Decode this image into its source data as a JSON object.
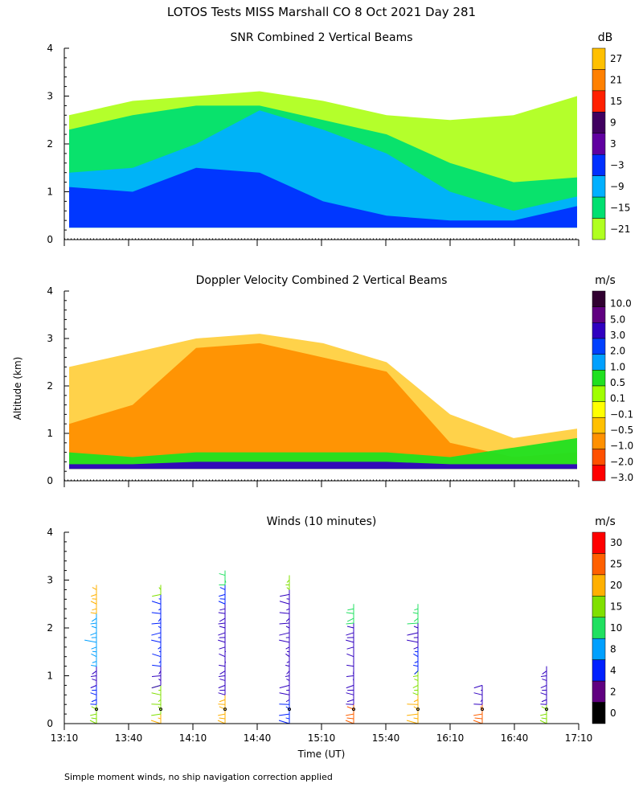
{
  "title": "LOTOS Tests MISS Marshall CO   8 Oct 2021 Day 281",
  "footer_note": "Simple moment winds, no ship navigation correction applied",
  "shared_ylabel": "Altitude (km)",
  "chart_data": [
    {
      "id": "snr",
      "type": "heatmap",
      "title": "SNR Combined 2 Vertical Beams",
      "ylabel": "Altitude (km)",
      "ylim": [
        0,
        4
      ],
      "yticks": [
        "0",
        "1",
        "2",
        "3",
        "4"
      ],
      "colorbar_unit": "dB",
      "colorbar": {
        "labels": [
          "27",
          "21",
          "15",
          "9",
          "3",
          "−3",
          "−9",
          "−15",
          "−21"
        ],
        "colors": [
          "#ffc000",
          "#ff8000",
          "#ff2000",
          "#400060",
          "#6000a0",
          "#0030ff",
          "#00b0ff",
          "#00e070",
          "#b0ff20"
        ]
      },
      "layers": [
        {
          "name": "low_snr",
          "color": "#b0ff20",
          "ranges": [
            [
              0,
              2.6
            ],
            [
              0,
              2.9
            ],
            [
              0,
              3.0
            ],
            [
              0,
              3.1
            ],
            [
              0,
              2.9
            ],
            [
              0,
              2.6
            ],
            [
              0,
              2.5
            ],
            [
              0,
              2.6
            ],
            [
              0,
              3.0
            ]
          ]
        },
        {
          "name": "mid_snr",
          "color": "#00e070",
          "ranges": [
            [
              0,
              2.3
            ],
            [
              0,
              2.6
            ],
            [
              0,
              2.8
            ],
            [
              0,
              2.8
            ],
            [
              0,
              2.5
            ],
            [
              0,
              2.2
            ],
            [
              0,
              1.6
            ],
            [
              0,
              1.2
            ],
            [
              0,
              1.3
            ]
          ]
        },
        {
          "name": "high_snr",
          "color": "#00b0ff",
          "ranges": [
            [
              0,
              1.4
            ],
            [
              0,
              1.5
            ],
            [
              0,
              2.0
            ],
            [
              0,
              2.7
            ],
            [
              0,
              2.3
            ],
            [
              0,
              1.8
            ],
            [
              0,
              1.0
            ],
            [
              0,
              0.6
            ],
            [
              0,
              0.9
            ]
          ]
        },
        {
          "name": "max_snr",
          "color": "#0030ff",
          "ranges": [
            [
              0,
              1.1
            ],
            [
              0,
              1.0
            ],
            [
              0,
              1.5
            ],
            [
              0,
              1.4
            ],
            [
              0,
              0.8
            ],
            [
              0,
              0.5
            ],
            [
              0,
              0.4
            ],
            [
              0,
              0.4
            ],
            [
              0,
              0.7
            ]
          ]
        }
      ]
    },
    {
      "id": "doppler",
      "type": "heatmap",
      "title": "Doppler Velocity Combined 2 Vertical Beams",
      "ylabel": "Altitude (km)",
      "ylim": [
        0,
        4
      ],
      "yticks": [
        "0",
        "1",
        "2",
        "3",
        "4"
      ],
      "colorbar_unit": "m/s",
      "colorbar": {
        "labels": [
          "10.0",
          "5.0",
          "3.0",
          "2.0",
          "1.0",
          "0.5",
          "0.1",
          "−0.1",
          "−0.5",
          "−1.0",
          "−2.0",
          "−3.0"
        ],
        "colors": [
          "#300030",
          "#600080",
          "#3000c0",
          "#0040ff",
          "#00a0ff",
          "#20e020",
          "#a0ff00",
          "#ffff00",
          "#ffc000",
          "#ff9000",
          "#ff5000",
          "#ff0000"
        ]
      },
      "layers": [
        {
          "name": "weak_down",
          "color": "#ffd040",
          "ranges": [
            [
              0,
              2.4
            ],
            [
              0,
              2.7
            ],
            [
              0,
              3.0
            ],
            [
              0,
              3.1
            ],
            [
              0,
              2.9
            ],
            [
              0,
              2.5
            ],
            [
              0,
              1.4
            ],
            [
              0,
              0.9
            ],
            [
              0,
              1.1
            ]
          ]
        },
        {
          "name": "mod_down",
          "color": "#ff9000",
          "ranges": [
            [
              0,
              1.2
            ],
            [
              0,
              1.6
            ],
            [
              0,
              2.8
            ],
            [
              0,
              2.9
            ],
            [
              0,
              2.6
            ],
            [
              0,
              2.3
            ],
            [
              0,
              0.8
            ],
            [
              0,
              0.5
            ],
            [
              0,
              0.6
            ]
          ]
        },
        {
          "name": "up_bits",
          "color": "#20e020",
          "ranges": [
            [
              0,
              0.6
            ],
            [
              0,
              0.5
            ],
            [
              0,
              0.6
            ],
            [
              0,
              0.6
            ],
            [
              0,
              0.6
            ],
            [
              0,
              0.6
            ],
            [
              0,
              0.5
            ],
            [
              0,
              0.7
            ],
            [
              0,
              0.9
            ]
          ]
        },
        {
          "name": "surface_noise",
          "color": "#3000c0",
          "ranges": [
            [
              0,
              0.35
            ],
            [
              0,
              0.35
            ],
            [
              0,
              0.4
            ],
            [
              0,
              0.4
            ],
            [
              0,
              0.4
            ],
            [
              0,
              0.4
            ],
            [
              0,
              0.35
            ],
            [
              0,
              0.35
            ],
            [
              0,
              0.35
            ]
          ]
        }
      ]
    },
    {
      "id": "winds",
      "type": "scatter",
      "title": "Winds (10 minutes)",
      "ylabel": "Altitude (km)",
      "xlabel": "Time (UT)",
      "ylim": [
        0,
        4
      ],
      "yticks": [
        "0",
        "1",
        "2",
        "3",
        "4"
      ],
      "xticks": [
        "13:10",
        "13:40",
        "14:10",
        "14:40",
        "15:10",
        "15:40",
        "16:10",
        "16:40",
        "17:10"
      ],
      "colorbar_unit": "m/s",
      "colorbar": {
        "labels": [
          "30",
          "25",
          "20",
          "15",
          "10",
          "8",
          "4",
          "2",
          "0"
        ],
        "colors": [
          "#ff0000",
          "#ff6000",
          "#ffb000",
          "#80e000",
          "#20e060",
          "#00a0ff",
          "#0020ff",
          "#600080",
          "#000000"
        ]
      },
      "profiles": [
        {
          "time": "13:25",
          "top_km": 2.9,
          "segments": [
            {
              "from": 0.0,
              "to": 0.4,
              "color": "#80e000"
            },
            {
              "from": 0.4,
              "to": 0.8,
              "color": "#0020ff"
            },
            {
              "from": 0.8,
              "to": 1.2,
              "color": "#3000c0"
            },
            {
              "from": 1.2,
              "to": 2.3,
              "color": "#00a0ff"
            },
            {
              "from": 2.3,
              "to": 2.9,
              "color": "#ffb000"
            }
          ]
        },
        {
          "time": "13:55",
          "top_km": 2.9,
          "segments": [
            {
              "from": 0.0,
              "to": 0.2,
              "color": "#ffb000"
            },
            {
              "from": 0.2,
              "to": 0.8,
              "color": "#80e000"
            },
            {
              "from": 0.8,
              "to": 1.2,
              "color": "#3000c0"
            },
            {
              "from": 1.2,
              "to": 2.7,
              "color": "#0020ff"
            },
            {
              "from": 2.7,
              "to": 2.9,
              "color": "#80e000"
            }
          ]
        },
        {
          "time": "14:25",
          "top_km": 3.2,
          "segments": [
            {
              "from": 0.0,
              "to": 0.6,
              "color": "#ffb000"
            },
            {
              "from": 0.6,
              "to": 2.5,
              "color": "#3000c0"
            },
            {
              "from": 2.5,
              "to": 2.9,
              "color": "#0020ff"
            },
            {
              "from": 2.9,
              "to": 3.2,
              "color": "#20e060"
            }
          ]
        },
        {
          "time": "14:55",
          "top_km": 3.1,
          "segments": [
            {
              "from": 0.0,
              "to": 0.5,
              "color": "#0020ff"
            },
            {
              "from": 0.5,
              "to": 2.2,
              "color": "#3000c0"
            },
            {
              "from": 2.2,
              "to": 2.8,
              "color": "#3000c0"
            },
            {
              "from": 2.8,
              "to": 3.1,
              "color": "#80e000"
            }
          ]
        },
        {
          "time": "15:25",
          "top_km": 2.5,
          "segments": [
            {
              "from": 0.0,
              "to": 0.4,
              "color": "#ff6000"
            },
            {
              "from": 0.4,
              "to": 1.6,
              "color": "#3000c0"
            },
            {
              "from": 1.6,
              "to": 2.1,
              "color": "#3000c0"
            },
            {
              "from": 2.1,
              "to": 2.5,
              "color": "#20e060"
            }
          ]
        },
        {
          "time": "15:55",
          "top_km": 2.5,
          "segments": [
            {
              "from": 0.0,
              "to": 0.6,
              "color": "#ffb000"
            },
            {
              "from": 0.6,
              "to": 1.1,
              "color": "#80e000"
            },
            {
              "from": 1.1,
              "to": 1.6,
              "color": "#0020ff"
            },
            {
              "from": 1.6,
              "to": 2.1,
              "color": "#3000c0"
            },
            {
              "from": 2.1,
              "to": 2.5,
              "color": "#20e060"
            }
          ]
        },
        {
          "time": "16:25",
          "top_km": 0.8,
          "segments": [
            {
              "from": 0.0,
              "to": 0.4,
              "color": "#ff6000"
            },
            {
              "from": 0.4,
              "to": 0.8,
              "color": "#3000c0"
            }
          ]
        },
        {
          "time": "16:55",
          "top_km": 1.2,
          "segments": [
            {
              "from": 0.0,
              "to": 0.4,
              "color": "#80e000"
            },
            {
              "from": 0.4,
              "to": 1.2,
              "color": "#3000c0"
            }
          ]
        }
      ]
    }
  ]
}
